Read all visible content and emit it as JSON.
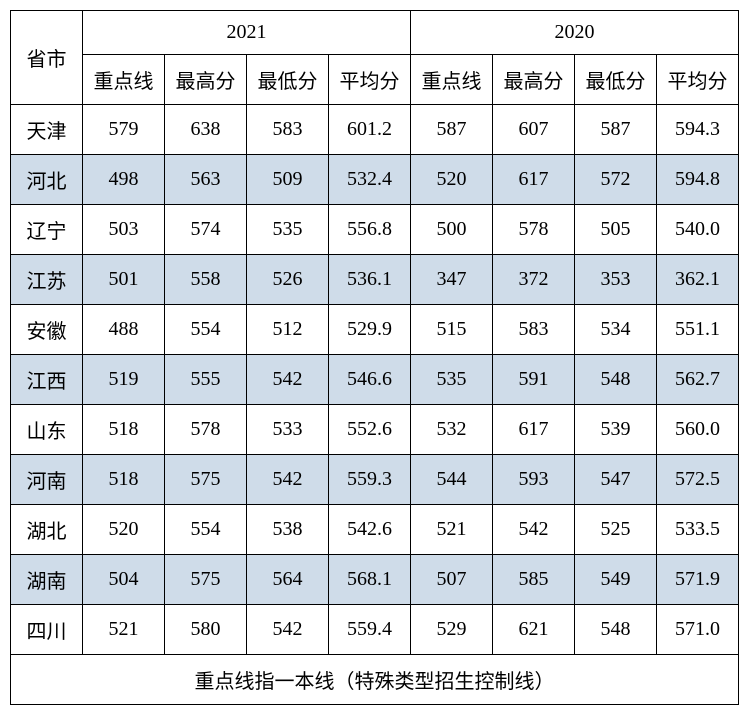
{
  "table": {
    "header": {
      "province_label": "省市",
      "year_2021": "2021",
      "year_2020": "2020",
      "sub_cols": [
        "重点线",
        "最高分",
        "最低分",
        "平均分"
      ]
    },
    "rows": [
      {
        "province": "天津",
        "y2021": [
          "579",
          "638",
          "583",
          "601.2"
        ],
        "y2020": [
          "587",
          "607",
          "587",
          "594.3"
        ]
      },
      {
        "province": "河北",
        "y2021": [
          "498",
          "563",
          "509",
          "532.4"
        ],
        "y2020": [
          "520",
          "617",
          "572",
          "594.8"
        ]
      },
      {
        "province": "辽宁",
        "y2021": [
          "503",
          "574",
          "535",
          "556.8"
        ],
        "y2020": [
          "500",
          "578",
          "505",
          "540.0"
        ]
      },
      {
        "province": "江苏",
        "y2021": [
          "501",
          "558",
          "526",
          "536.1"
        ],
        "y2020": [
          "347",
          "372",
          "353",
          "362.1"
        ]
      },
      {
        "province": "安徽",
        "y2021": [
          "488",
          "554",
          "512",
          "529.9"
        ],
        "y2020": [
          "515",
          "583",
          "534",
          "551.1"
        ]
      },
      {
        "province": "江西",
        "y2021": [
          "519",
          "555",
          "542",
          "546.6"
        ],
        "y2020": [
          "535",
          "591",
          "548",
          "562.7"
        ]
      },
      {
        "province": "山东",
        "y2021": [
          "518",
          "578",
          "533",
          "552.6"
        ],
        "y2020": [
          "532",
          "617",
          "539",
          "560.0"
        ]
      },
      {
        "province": "河南",
        "y2021": [
          "518",
          "575",
          "542",
          "559.3"
        ],
        "y2020": [
          "544",
          "593",
          "547",
          "572.5"
        ]
      },
      {
        "province": "湖北",
        "y2021": [
          "520",
          "554",
          "538",
          "542.6"
        ],
        "y2020": [
          "521",
          "542",
          "525",
          "533.5"
        ]
      },
      {
        "province": "湖南",
        "y2021": [
          "504",
          "575",
          "564",
          "568.1"
        ],
        "y2020": [
          "507",
          "585",
          "549",
          "571.9"
        ]
      },
      {
        "province": "四川",
        "y2021": [
          "521",
          "580",
          "542",
          "559.4"
        ],
        "y2020": [
          "529",
          "621",
          "548",
          "571.0"
        ]
      }
    ],
    "footer": "重点线指一本线（特殊类型招生控制线）",
    "colors": {
      "row_odd_bg": "#ffffff",
      "row_even_bg": "#cfdce9",
      "border": "#000000"
    }
  }
}
